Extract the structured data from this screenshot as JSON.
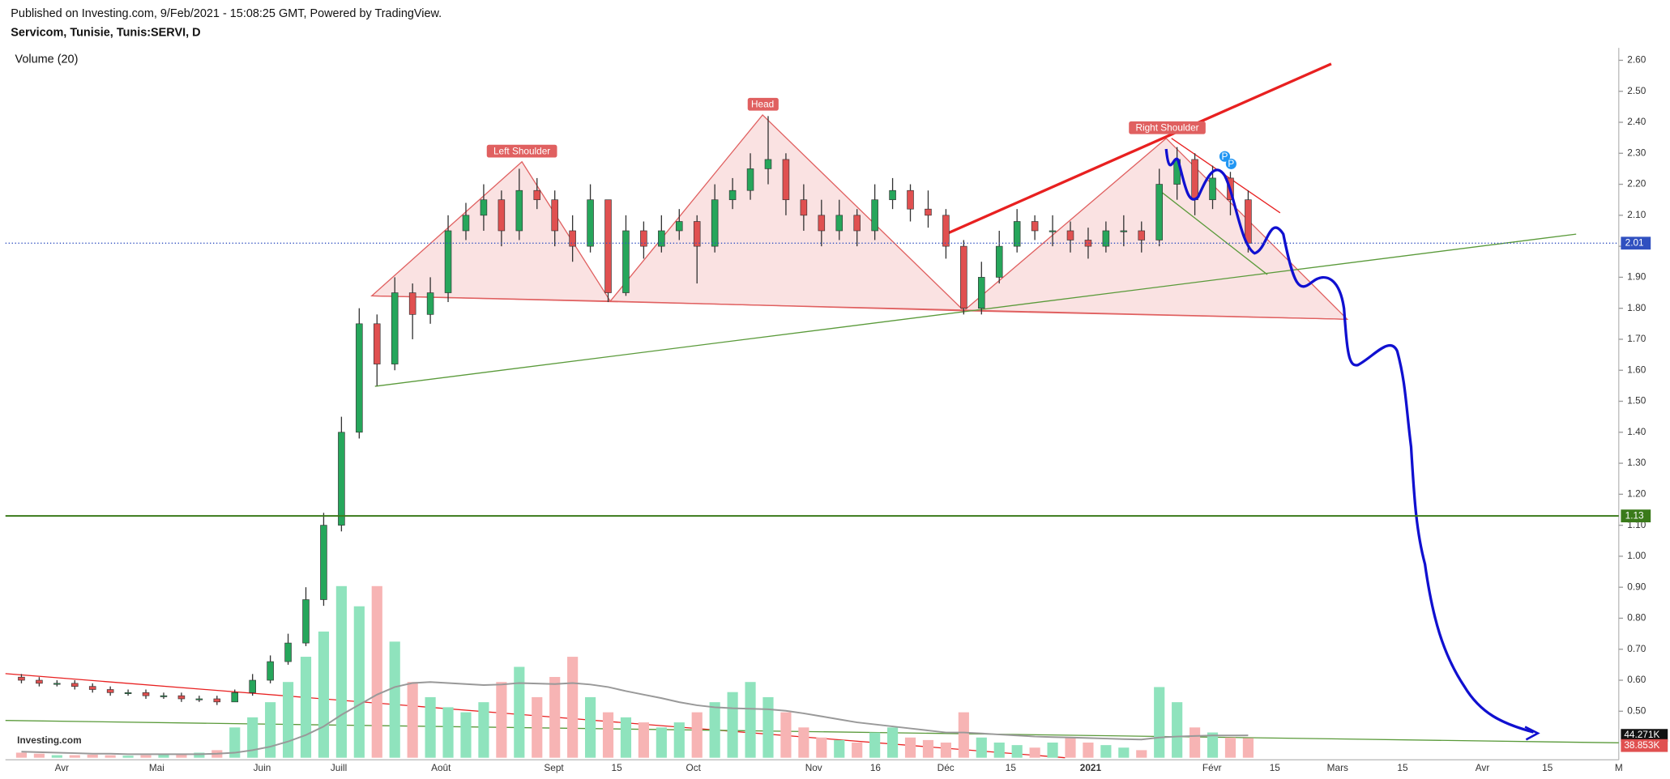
{
  "header": {
    "published": "Published on Investing.com, 9/Feb/2021 - 15:08:25 GMT, Powered by TradingView.",
    "symbol": "Servicom, Tunisie, Tunis:SERVI, D",
    "volume_label": "Volume (20)",
    "logo": "Investing.com"
  },
  "chart_data": {
    "type": "candlestick",
    "categories": [
      "Avr",
      "Mai",
      "Juin",
      "Juill",
      "Août",
      "Sept",
      "15",
      "Oct",
      "Nov",
      "16",
      "Déc",
      "15",
      "2021",
      "Févr",
      "15",
      "Mars",
      "15",
      "Avr",
      "15",
      "M"
    ],
    "open": [
      0.61,
      0.6,
      0.59,
      0.59,
      0.58,
      0.57,
      0.56,
      0.56,
      0.55,
      0.55,
      0.54,
      0.54,
      0.53,
      0.56,
      0.6,
      0.66,
      0.72,
      0.86,
      1.1,
      1.4,
      1.75,
      1.62,
      1.85,
      1.78,
      1.85,
      2.05,
      2.1,
      2.15,
      2.05,
      2.18,
      2.15,
      2.05,
      2.0,
      2.15,
      1.85,
      2.05,
      2.0,
      2.05,
      2.08,
      2.0,
      2.15,
      2.18,
      2.25,
      2.28,
      2.15,
      2.1,
      2.05,
      2.1,
      2.05,
      2.15,
      2.18,
      2.12,
      2.1,
      2.0,
      1.8,
      1.9,
      2.0,
      2.08,
      2.05,
      2.05,
      2.02,
      2.0,
      2.05,
      2.05,
      2.02,
      2.2,
      2.28,
      2.15,
      2.22,
      2.15
    ],
    "high": [
      0.62,
      0.61,
      0.6,
      0.6,
      0.59,
      0.58,
      0.57,
      0.57,
      0.56,
      0.56,
      0.55,
      0.55,
      0.57,
      0.62,
      0.68,
      0.75,
      0.9,
      1.14,
      1.45,
      1.8,
      1.78,
      1.9,
      1.88,
      1.9,
      2.1,
      2.14,
      2.2,
      2.18,
      2.25,
      2.22,
      2.18,
      2.1,
      2.2,
      2.15,
      2.1,
      2.08,
      2.1,
      2.12,
      2.1,
      2.2,
      2.22,
      2.3,
      2.42,
      2.3,
      2.2,
      2.15,
      2.15,
      2.12,
      2.2,
      2.22,
      2.2,
      2.18,
      2.12,
      2.02,
      1.95,
      2.05,
      2.12,
      2.1,
      2.1,
      2.08,
      2.06,
      2.08,
      2.1,
      2.08,
      2.25,
      2.32,
      2.3,
      2.26,
      2.24,
      2.18
    ],
    "low": [
      0.59,
      0.58,
      0.58,
      0.57,
      0.56,
      0.55,
      0.55,
      0.54,
      0.54,
      0.53,
      0.53,
      0.52,
      0.53,
      0.55,
      0.59,
      0.65,
      0.71,
      0.84,
      1.08,
      1.38,
      1.55,
      1.6,
      1.7,
      1.75,
      1.82,
      2.02,
      2.05,
      2.0,
      2.02,
      2.12,
      2.0,
      1.95,
      1.98,
      1.82,
      1.84,
      1.96,
      1.98,
      2.02,
      1.88,
      1.98,
      2.12,
      2.15,
      2.2,
      2.1,
      2.05,
      2.0,
      2.02,
      2.0,
      2.02,
      2.12,
      2.08,
      2.06,
      1.96,
      1.78,
      1.78,
      1.88,
      1.98,
      2.02,
      2.0,
      1.98,
      1.96,
      1.98,
      2.0,
      1.98,
      2.0,
      2.15,
      2.1,
      2.12,
      2.1,
      1.98
    ],
    "close": [
      0.6,
      0.59,
      0.59,
      0.58,
      0.57,
      0.56,
      0.56,
      0.55,
      0.55,
      0.54,
      0.54,
      0.53,
      0.56,
      0.6,
      0.66,
      0.72,
      0.86,
      1.1,
      1.4,
      1.75,
      1.62,
      1.85,
      1.78,
      1.85,
      2.05,
      2.1,
      2.15,
      2.05,
      2.18,
      2.15,
      2.05,
      2.0,
      2.15,
      1.85,
      2.05,
      2.0,
      2.05,
      2.08,
      2.0,
      2.15,
      2.18,
      2.25,
      2.28,
      2.15,
      2.1,
      2.05,
      2.1,
      2.05,
      2.15,
      2.18,
      2.12,
      2.1,
      2.0,
      1.8,
      1.9,
      2.0,
      2.08,
      2.05,
      2.05,
      2.02,
      2.0,
      2.05,
      2.05,
      2.02,
      2.2,
      2.28,
      2.15,
      2.22,
      2.15,
      2.01
    ],
    "volume": [
      10000,
      8000,
      5000,
      5000,
      6000,
      5000,
      4000,
      5000,
      6000,
      8000,
      10000,
      15000,
      60000,
      80000,
      110000,
      150000,
      200000,
      250000,
      340000,
      300000,
      340000,
      230000,
      150000,
      120000,
      100000,
      90000,
      110000,
      150000,
      180000,
      120000,
      160000,
      200000,
      120000,
      90000,
      80000,
      70000,
      60000,
      70000,
      90000,
      110000,
      130000,
      150000,
      120000,
      90000,
      60000,
      40000,
      35000,
      30000,
      50000,
      60000,
      40000,
      35000,
      30000,
      90000,
      40000,
      30000,
      25000,
      20000,
      30000,
      40000,
      30000,
      25000,
      20000,
      15000,
      140000,
      110000,
      60000,
      50000,
      40000,
      38853
    ],
    "volume_ma": [
      12000,
      11000,
      10000,
      9000,
      8000,
      8000,
      7000,
      7000,
      7000,
      7000,
      7000,
      8000,
      10000,
      15000,
      22000,
      32000,
      45000,
      62000,
      85000,
      105000,
      125000,
      140000,
      148000,
      150000,
      148000,
      146000,
      144000,
      145000,
      148000,
      147000,
      146000,
      148000,
      145000,
      140000,
      132000,
      125000,
      118000,
      110000,
      104000,
      100000,
      98000,
      97000,
      96000,
      93000,
      88000,
      82000,
      76000,
      70000,
      66000,
      62000,
      58000,
      54000,
      50000,
      50000,
      48000,
      46000,
      44000,
      42000,
      41000,
      40000,
      39000,
      38000,
      37000,
      36000,
      40000,
      42000,
      43000,
      44000,
      44000,
      44271
    ],
    "up_color": "#26a65b",
    "down_color": "#e05050",
    "volume_up_color": "#8fe3bd",
    "volume_down_color": "#f7b4b4",
    "volume_ma_color": "#999999",
    "ylim": [
      0.35,
      2.64
    ],
    "yticks": [
      {
        "value": 0.5,
        "label": "0.50"
      },
      {
        "value": 0.6,
        "label": "0.60"
      },
      {
        "value": 0.7,
        "label": "0.70"
      },
      {
        "value": 0.8,
        "label": "0.80"
      },
      {
        "value": 0.9,
        "label": "0.90"
      },
      {
        "value": 1.0,
        "label": "1.00"
      },
      {
        "value": 1.1,
        "label": "1.10"
      },
      {
        "value": 1.2,
        "label": "1.20"
      },
      {
        "value": 1.3,
        "label": "1.30"
      },
      {
        "value": 1.4,
        "label": "1.40"
      },
      {
        "value": 1.5,
        "label": "1.50"
      },
      {
        "value": 1.6,
        "label": "1.60"
      },
      {
        "value": 1.7,
        "label": "1.70"
      },
      {
        "value": 1.8,
        "label": "1.80"
      },
      {
        "value": 1.9,
        "label": "1.90"
      },
      {
        "value": 2.0,
        "label": "2.00"
      },
      {
        "value": 2.1,
        "label": "2.10"
      },
      {
        "value": 2.2,
        "label": "2.20"
      },
      {
        "value": 2.3,
        "label": "2.30"
      },
      {
        "value": 2.4,
        "label": "2.40"
      },
      {
        "value": 2.5,
        "label": "2.50"
      },
      {
        "value": 2.6,
        "label": "2.60"
      }
    ],
    "vlim": [
      0,
      350000
    ],
    "last_price": {
      "value": 2.01,
      "label": "2.01"
    },
    "horizontal_level": {
      "value": 1.13,
      "label": "1.13"
    },
    "volume_ma_last": {
      "value": 44271,
      "label": "44.271K"
    },
    "volume_last": {
      "value": 38853,
      "label": "38.853K"
    },
    "annotations": [
      "Left Shoulder",
      "Head",
      "Right Shoulder",
      "P",
      "P"
    ]
  }
}
